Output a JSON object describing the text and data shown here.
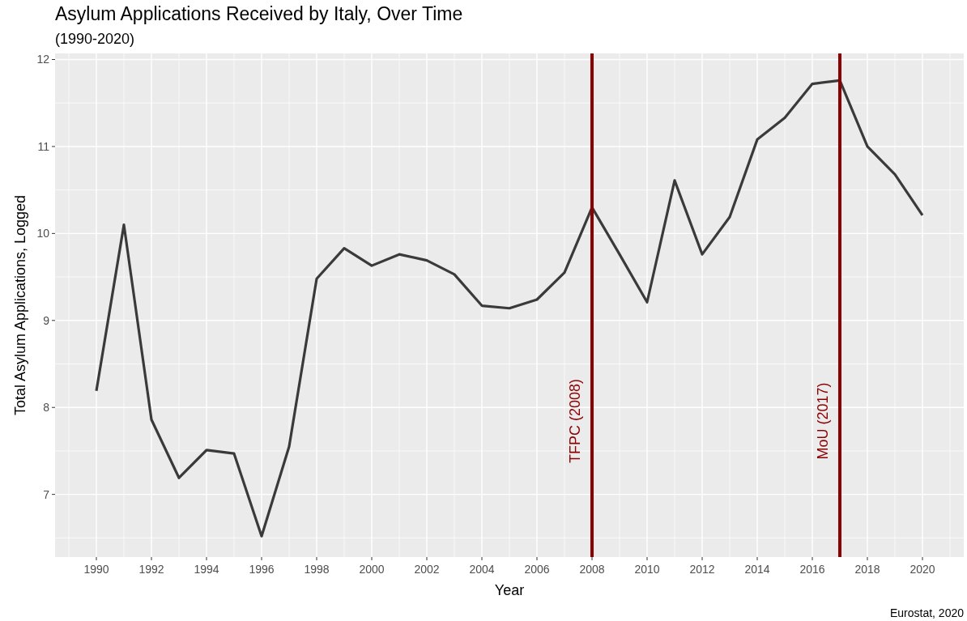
{
  "chart_data": {
    "type": "line",
    "title": "Asylum Applications Received by Italy, Over Time",
    "subtitle": "(1990-2020)",
    "xlabel": "Year",
    "ylabel": "Total Asylum Applications, Logged",
    "x": [
      1990,
      1991,
      1992,
      1993,
      1994,
      1995,
      1996,
      1997,
      1998,
      1999,
      2000,
      2001,
      2002,
      2003,
      2004,
      2005,
      2006,
      2007,
      2008,
      2009,
      2010,
      2011,
      2012,
      2013,
      2014,
      2015,
      2016,
      2017,
      2018,
      2019,
      2020
    ],
    "series": [
      {
        "color": "#3a3a3a",
        "values": [
          8.19,
          10.1,
          7.86,
          7.19,
          7.51,
          7.47,
          6.52,
          7.55,
          9.48,
          9.83,
          9.63,
          9.76,
          9.69,
          9.53,
          9.17,
          9.14,
          9.24,
          9.55,
          10.3,
          9.76,
          9.21,
          10.61,
          9.76,
          10.19,
          11.08,
          11.33,
          11.72,
          11.76,
          11.0,
          10.68,
          10.21
        ]
      }
    ],
    "xlim": [
      1988.5,
      2021.5
    ],
    "xticks": [
      1990,
      1992,
      1994,
      1996,
      1998,
      2000,
      2002,
      2004,
      2006,
      2008,
      2010,
      2012,
      2014,
      2016,
      2018,
      2020
    ],
    "ylim": [
      6.28,
      12.07
    ],
    "yticks": [
      7,
      8,
      9,
      10,
      11,
      12
    ],
    "grid": true,
    "line_style": "solid",
    "ref_lines": [
      {
        "axis": "x",
        "value": 2008,
        "label": "TFPC (2008)",
        "color": "#8b0000"
      },
      {
        "axis": "x",
        "value": 2017,
        "label": "MoU (2017)",
        "color": "#8b0000"
      }
    ],
    "annotations": [
      "Eurostat, 2020"
    ]
  }
}
